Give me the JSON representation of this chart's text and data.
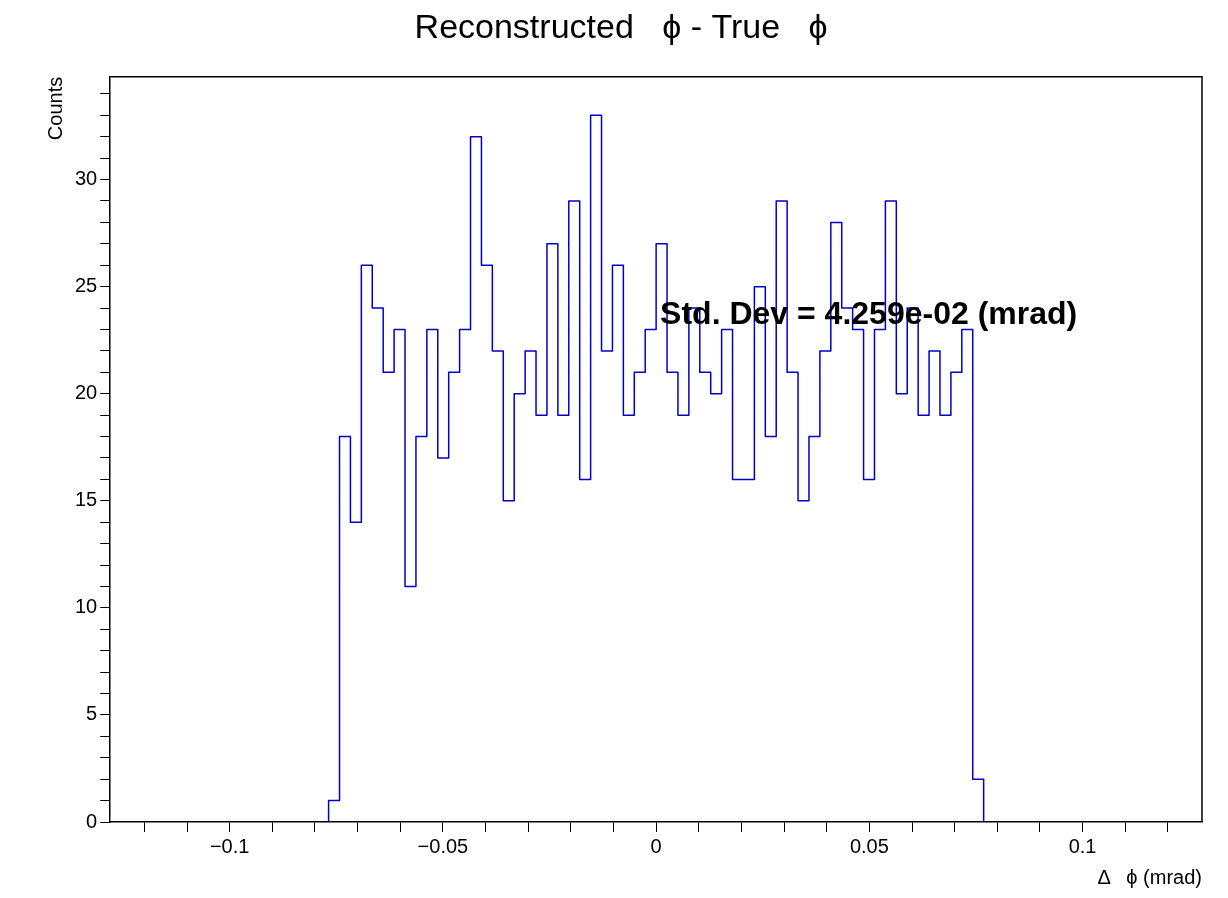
{
  "chart_data": {
    "type": "histogram",
    "title": "Reconstructed   ϕ - True   ϕ",
    "xlabel": "Δ   ϕ (mrad)",
    "ylabel": "Counts",
    "bins": [
      -0.0768,
      -0.07424,
      -0.07168,
      -0.06912,
      -0.06656,
      -0.064,
      -0.06144,
      -0.05888,
      -0.05632,
      -0.05376,
      -0.0512,
      -0.04864,
      -0.04608,
      -0.04352,
      -0.04096,
      -0.0384,
      -0.03584,
      -0.03328,
      -0.03072,
      -0.02816,
      -0.0256,
      -0.02304,
      -0.02048,
      -0.01792,
      -0.01536,
      -0.0128,
      -0.01024,
      -0.00768,
      -0.00512,
      -0.00256,
      0,
      0.00256,
      0.00512,
      0.00768,
      0.01024,
      0.0128,
      0.01536,
      0.01792,
      0.02048,
      0.02304,
      0.0256,
      0.02816,
      0.03072,
      0.03328,
      0.03584,
      0.0384,
      0.04096,
      0.04352,
      0.04608,
      0.04864,
      0.0512,
      0.05376,
      0.05632,
      0.05888,
      0.06144,
      0.064,
      0.06656,
      0.06912,
      0.07168,
      0.07424,
      0.0768
    ],
    "values": [
      1,
      18,
      14,
      26,
      24,
      21,
      23,
      11,
      18,
      23,
      17,
      21,
      23,
      32,
      26,
      22,
      15,
      20,
      22,
      19,
      27,
      19,
      29,
      16,
      33,
      22,
      26,
      19,
      21,
      23,
      27,
      21,
      19,
      24,
      21,
      20,
      23,
      16,
      16,
      25,
      18,
      29,
      21,
      15,
      18,
      22,
      28,
      24,
      23,
      16,
      23,
      29,
      20,
      24,
      19,
      22,
      19,
      21,
      23,
      2
    ],
    "color": "#0000cc",
    "xlim": [
      -0.128,
      0.128
    ],
    "xticks": [
      {
        "value": -0.12,
        "label": null
      },
      {
        "value": -0.11,
        "label": null
      },
      {
        "value": -0.1,
        "label": "−0.1"
      },
      {
        "value": -0.09,
        "label": null
      },
      {
        "value": -0.08,
        "label": null
      },
      {
        "value": -0.07,
        "label": null
      },
      {
        "value": -0.06,
        "label": null
      },
      {
        "value": -0.05,
        "label": "−0.05"
      },
      {
        "value": -0.04,
        "label": null
      },
      {
        "value": -0.03,
        "label": null
      },
      {
        "value": -0.02,
        "label": null
      },
      {
        "value": -0.01,
        "label": null
      },
      0,
      {
        "value": 0.01,
        "label": null
      },
      {
        "value": 0.02,
        "label": null
      },
      {
        "value": 0.03,
        "label": null
      },
      {
        "value": 0.04,
        "label": null
      },
      0.05,
      {
        "value": 0.06,
        "label": null
      },
      {
        "value": 0.07,
        "label": null
      },
      {
        "value": 0.08,
        "label": null
      },
      {
        "value": 0.09,
        "label": null
      },
      0.1,
      {
        "value": 0.11,
        "label": null
      },
      {
        "value": 0.12,
        "label": null
      }
    ],
    "ylim": [
      0,
      34.8
    ],
    "yticks": [
      0,
      {
        "value": 1,
        "label": null
      },
      {
        "value": 2,
        "label": null
      },
      {
        "value": 3,
        "label": null
      },
      {
        "value": 4,
        "label": null
      },
      5,
      {
        "value": 6,
        "label": null
      },
      {
        "value": 7,
        "label": null
      },
      {
        "value": 8,
        "label": null
      },
      {
        "value": 9,
        "label": null
      },
      10,
      {
        "value": 11,
        "label": null
      },
      {
        "value": 12,
        "label": null
      },
      {
        "value": 13,
        "label": null
      },
      {
        "value": 14,
        "label": null
      },
      15,
      {
        "value": 16,
        "label": null
      },
      {
        "value": 17,
        "label": null
      },
      {
        "value": 18,
        "label": null
      },
      {
        "value": 19,
        "label": null
      },
      20,
      {
        "value": 21,
        "label": null
      },
      {
        "value": 22,
        "label": null
      },
      {
        "value": 23,
        "label": null
      },
      {
        "value": 24,
        "label": null
      },
      25,
      {
        "value": 26,
        "label": null
      },
      {
        "value": 27,
        "label": null
      },
      {
        "value": 28,
        "label": null
      },
      {
        "value": 29,
        "label": null
      },
      30,
      {
        "value": 31,
        "label": null
      },
      {
        "value": 32,
        "label": null
      },
      {
        "value": 33,
        "label": null
      },
      {
        "value": 34,
        "label": null
      }
    ],
    "grid": false,
    "legend": false,
    "annotations": [
      "Std. Dev = 4.259e-02 (mrad)"
    ]
  }
}
